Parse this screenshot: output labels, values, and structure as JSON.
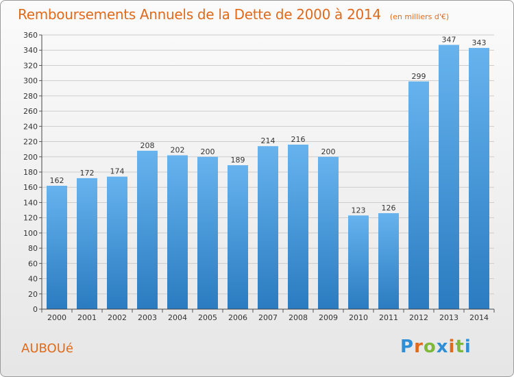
{
  "title": "Remboursements Annuels de la Dette de 2000 à 2014",
  "unit": "(en milliers d'€)",
  "commune": "AUBOUé",
  "logo": "Proxiti",
  "colors": {
    "title": "#e06a1b",
    "bar_light": "#66b3ee",
    "bar_dark": "#2a7bc0",
    "grid": "#cccccc",
    "logo_letters": [
      "#2e8fd6",
      "#e06a1b",
      "#7db83a",
      "#2e8fd6",
      "#e06a1b",
      "#7db83a",
      "#2e8fd6"
    ]
  },
  "chart_data": {
    "type": "bar",
    "title": "Remboursements Annuels de la Dette de 2000 à 2014",
    "subtitle": "(en milliers d'€)",
    "xlabel": "",
    "ylabel": "",
    "categories": [
      "2000",
      "2001",
      "2002",
      "2003",
      "2004",
      "2005",
      "2006",
      "2007",
      "2008",
      "2009",
      "2010",
      "2011",
      "2012",
      "2013",
      "2014"
    ],
    "values": [
      162,
      172,
      174,
      208,
      202,
      200,
      189,
      214,
      216,
      200,
      123,
      126,
      299,
      347,
      343
    ],
    "ylim": [
      0,
      360
    ],
    "yticks": [
      0,
      20,
      40,
      60,
      80,
      100,
      120,
      140,
      160,
      180,
      200,
      220,
      240,
      260,
      280,
      300,
      320,
      340,
      360
    ],
    "grid": true,
    "data_labels": true
  }
}
